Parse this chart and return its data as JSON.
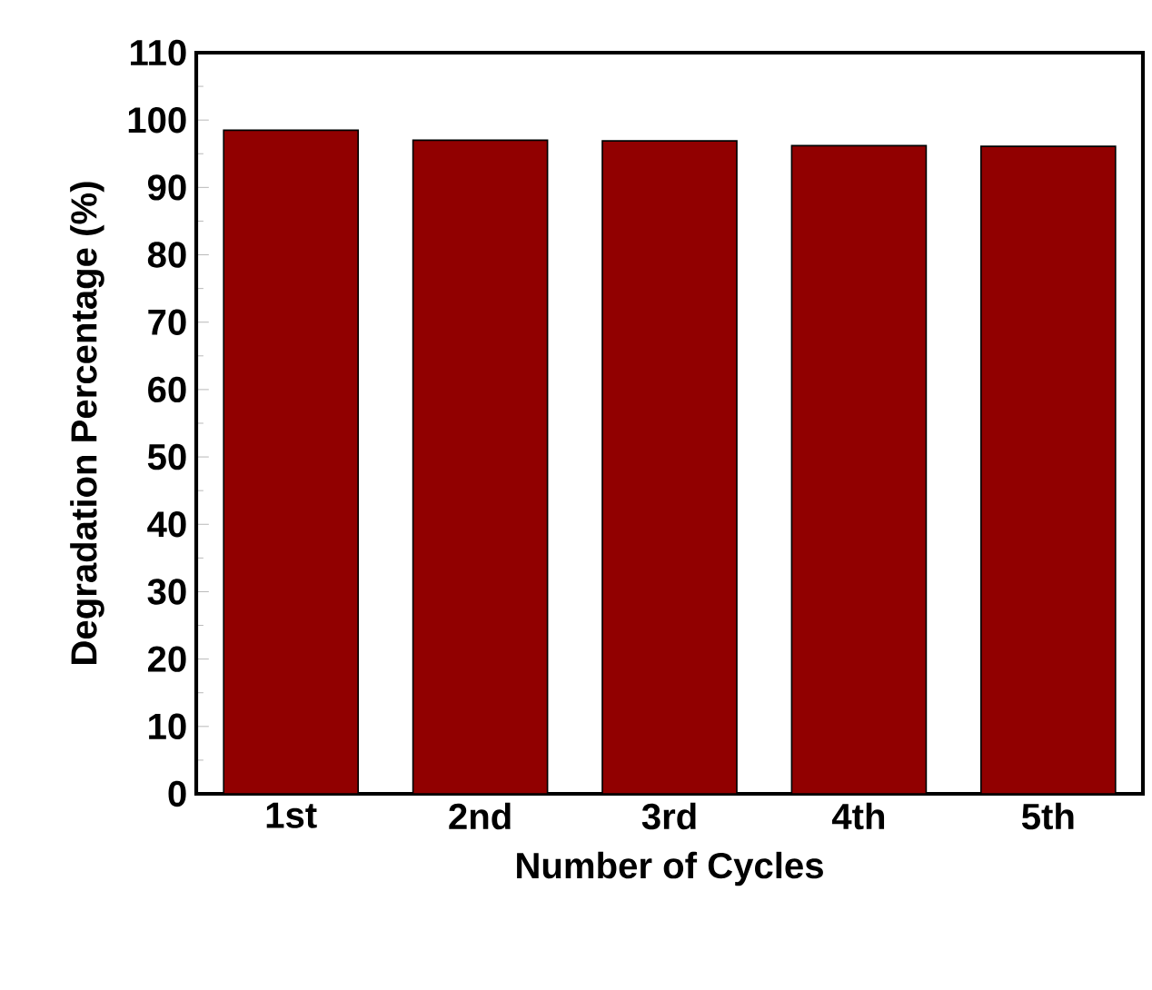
{
  "chart_data": {
    "type": "bar",
    "xlabel": "Number of Cycles",
    "ylabel": "Degradation Percentage (%)",
    "categories": [
      "1st",
      "2nd",
      "3rd",
      "4th",
      "5th"
    ],
    "values": [
      98.5,
      97.0,
      96.9,
      96.2,
      96.1
    ],
    "color": "#910000",
    "ylim": [
      0,
      110
    ],
    "yticks": [
      0,
      10,
      20,
      30,
      40,
      50,
      60,
      70,
      80,
      90,
      100,
      110
    ],
    "grid": false
  }
}
